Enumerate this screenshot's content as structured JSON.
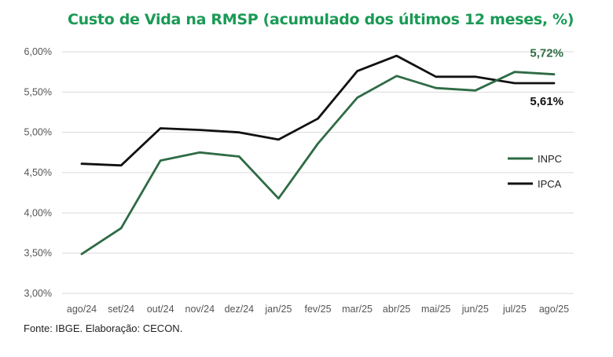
{
  "title": "Custo de Vida na RMSP (acumulado dos últimos 12 meses, %)",
  "source": "Fonte: IBGE. Elaboração: CECON.",
  "colors": {
    "inpc": "#2e6b45",
    "ipca": "#111111",
    "title": "#1a9a55",
    "grid": "#d9d9d9"
  },
  "chart_data": {
    "type": "line",
    "title": "Custo de Vida na RMSP (acumulado dos últimos 12 meses, %)",
    "categories": [
      "ago/24",
      "set/24",
      "out/24",
      "nov/24",
      "dez/24",
      "jan/25",
      "fev/25",
      "mar/25",
      "abr/25",
      "mai/25",
      "jun/25",
      "jul/25",
      "ago/25"
    ],
    "y_ticks": [
      "3,00%",
      "3,50%",
      "4,00%",
      "4,50%",
      "5,00%",
      "5,50%",
      "6,00%"
    ],
    "ylim": [
      3.0,
      6.0
    ],
    "grid": true,
    "legend_position": "right",
    "series": [
      {
        "name": "INPC",
        "color": "#2e6b45",
        "values": [
          3.49,
          3.81,
          4.65,
          4.75,
          4.7,
          4.18,
          4.86,
          5.43,
          5.7,
          5.55,
          5.52,
          5.75,
          5.72
        ],
        "end_label": "5,72%"
      },
      {
        "name": "IPCA",
        "color": "#111111",
        "values": [
          4.61,
          4.59,
          5.05,
          5.03,
          5.0,
          4.91,
          5.17,
          5.76,
          5.95,
          5.69,
          5.69,
          5.61,
          5.61
        ],
        "end_label": "5,61%"
      }
    ]
  }
}
